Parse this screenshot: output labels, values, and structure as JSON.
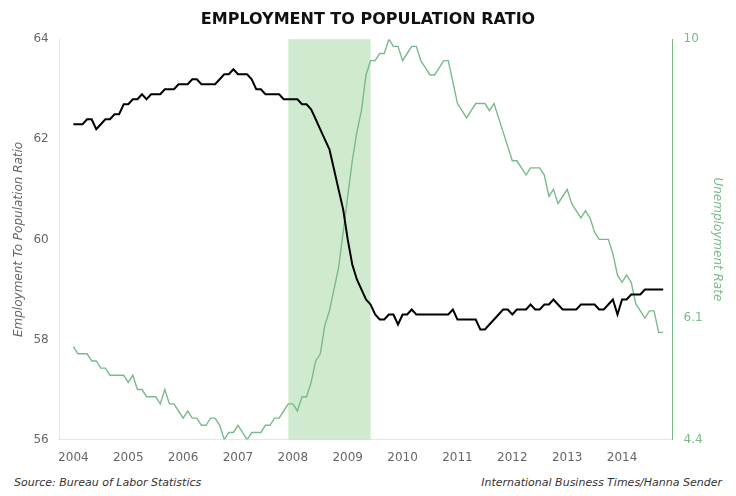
{
  "chart_data": {
    "type": "line",
    "title": "EMPLOYMENT TO POPULATION RATIO",
    "ylabel": "Employment To Population Ratio",
    "y2label": "Unemployment Rate",
    "annotations": [
      "Source: Bureau of Labor Statistics",
      "International Business Times/Hanna Sender"
    ],
    "spans": [
      {
        "start": 2007.917,
        "end": 2009.417,
        "color": "#aad9aa"
      }
    ],
    "x": [
      2004.0,
      2004.083,
      2004.167,
      2004.25,
      2004.333,
      2004.417,
      2004.5,
      2004.583,
      2004.667,
      2004.75,
      2004.833,
      2004.917,
      2005.0,
      2005.083,
      2005.167,
      2005.25,
      2005.333,
      2005.417,
      2005.5,
      2005.583,
      2005.667,
      2005.75,
      2005.833,
      2005.917,
      2006.0,
      2006.083,
      2006.167,
      2006.25,
      2006.333,
      2006.417,
      2006.5,
      2006.583,
      2006.667,
      2006.75,
      2006.833,
      2006.917,
      2007.0,
      2007.083,
      2007.167,
      2007.25,
      2007.333,
      2007.417,
      2007.5,
      2007.583,
      2007.667,
      2007.75,
      2007.833,
      2007.917,
      2008.0,
      2008.083,
      2008.167,
      2008.25,
      2008.333,
      2008.417,
      2008.5,
      2008.583,
      2008.667,
      2008.75,
      2008.833,
      2008.917,
      2009.0,
      2009.083,
      2009.167,
      2009.25,
      2009.333,
      2009.417,
      2009.5,
      2009.583,
      2009.667,
      2009.75,
      2009.833,
      2009.917,
      2010.0,
      2010.083,
      2010.167,
      2010.25,
      2010.333,
      2010.417,
      2010.5,
      2010.583,
      2010.667,
      2010.75,
      2010.833,
      2010.917,
      2011.0,
      2011.083,
      2011.167,
      2011.25,
      2011.333,
      2011.417,
      2011.5,
      2011.583,
      2011.667,
      2011.75,
      2011.833,
      2011.917,
      2012.0,
      2012.083,
      2012.167,
      2012.25,
      2012.333,
      2012.417,
      2012.5,
      2012.583,
      2012.667,
      2012.75,
      2012.833,
      2012.917,
      2013.0,
      2013.083,
      2013.167,
      2013.25,
      2013.333,
      2013.417,
      2013.5,
      2013.583,
      2013.667,
      2013.75,
      2013.833,
      2013.917,
      2014.0,
      2014.083,
      2014.167,
      2014.25,
      2014.333,
      2014.417,
      2014.5,
      2014.583,
      2014.667,
      2014.75
    ],
    "series": [
      {
        "color": "#000000",
        "axis": "y",
        "values": [
          62.3,
          62.3,
          62.3,
          62.4,
          62.4,
          62.2,
          62.3,
          62.4,
          62.4,
          62.5,
          62.5,
          62.7,
          62.7,
          62.8,
          62.8,
          62.9,
          62.8,
          62.9,
          62.9,
          62.9,
          63.0,
          63.0,
          63.0,
          63.1,
          63.1,
          63.1,
          63.2,
          63.2,
          63.1,
          63.1,
          63.1,
          63.1,
          63.2,
          63.3,
          63.3,
          63.4,
          63.3,
          63.3,
          63.3,
          63.2,
          63.0,
          63.0,
          62.9,
          62.9,
          62.9,
          62.9,
          62.8,
          62.8,
          62.8,
          62.8,
          62.7,
          62.7,
          62.6,
          62.4,
          62.2,
          62.0,
          61.8,
          61.4,
          61.0,
          60.6,
          60.0,
          59.5,
          59.2,
          59.0,
          58.8,
          58.7,
          58.5,
          58.4,
          58.4,
          58.5,
          58.5,
          58.3,
          58.5,
          58.5,
          58.6,
          58.5,
          58.5,
          58.5,
          58.5,
          58.5,
          58.5,
          58.5,
          58.5,
          58.6,
          58.4,
          58.4,
          58.4,
          58.4,
          58.4,
          58.2,
          58.2,
          58.3,
          58.4,
          58.5,
          58.6,
          58.6,
          58.5,
          58.6,
          58.6,
          58.6,
          58.7,
          58.6,
          58.6,
          58.7,
          58.7,
          58.8,
          58.7,
          58.6,
          58.6,
          58.6,
          58.6,
          58.7,
          58.7,
          58.7,
          58.7,
          58.6,
          58.6,
          58.7,
          58.8,
          58.5,
          58.8,
          58.8,
          58.9,
          58.9,
          58.9,
          59.0,
          59.0,
          59.0,
          59.0,
          59.0
        ]
      },
      {
        "color": "#7aba8a",
        "axis": "y2",
        "values": [
          5.7,
          5.6,
          5.6,
          5.6,
          5.5,
          5.5,
          5.4,
          5.4,
          5.3,
          5.3,
          5.3,
          5.3,
          5.2,
          5.3,
          5.1,
          5.1,
          5.0,
          5.0,
          5.0,
          4.9,
          5.1,
          4.9,
          4.9,
          4.8,
          4.7,
          4.8,
          4.7,
          4.7,
          4.6,
          4.6,
          4.7,
          4.7,
          4.6,
          4.4,
          4.5,
          4.5,
          4.6,
          4.5,
          4.4,
          4.5,
          4.5,
          4.5,
          4.6,
          4.6,
          4.7,
          4.7,
          4.8,
          4.9,
          4.9,
          4.8,
          5.0,
          5.0,
          5.2,
          5.5,
          5.6,
          6.0,
          6.2,
          6.5,
          6.8,
          7.3,
          7.8,
          8.3,
          8.7,
          9.0,
          9.5,
          9.7,
          9.7,
          9.8,
          9.8,
          10.0,
          9.9,
          9.9,
          9.7,
          9.8,
          9.9,
          9.9,
          9.7,
          9.6,
          9.5,
          9.5,
          9.6,
          9.7,
          9.7,
          9.4,
          9.1,
          9.0,
          8.9,
          9.0,
          9.1,
          9.1,
          9.1,
          9.0,
          9.1,
          8.9,
          8.7,
          8.5,
          8.3,
          8.3,
          8.2,
          8.1,
          8.2,
          8.2,
          8.2,
          8.1,
          7.8,
          7.9,
          7.7,
          7.8,
          7.9,
          7.7,
          7.6,
          7.5,
          7.6,
          7.5,
          7.3,
          7.2,
          7.2,
          7.2,
          7.0,
          6.7,
          6.6,
          6.7,
          6.6,
          6.3,
          6.2,
          6.1,
          6.2,
          6.2,
          5.9,
          5.9
        ]
      }
    ],
    "xlim": [
      2003.75,
      2014.92
    ],
    "xticks": [
      2004,
      2005,
      2006,
      2007,
      2008,
      2009,
      2010,
      2011,
      2012,
      2013,
      2014
    ],
    "ylim": [
      56,
      64
    ],
    "yticks": [
      56,
      58,
      60,
      62,
      64
    ],
    "y2lim": [
      4.4,
      10.0
    ],
    "y2ticks": [
      4.4,
      6.1,
      10
    ],
    "grid": false
  }
}
